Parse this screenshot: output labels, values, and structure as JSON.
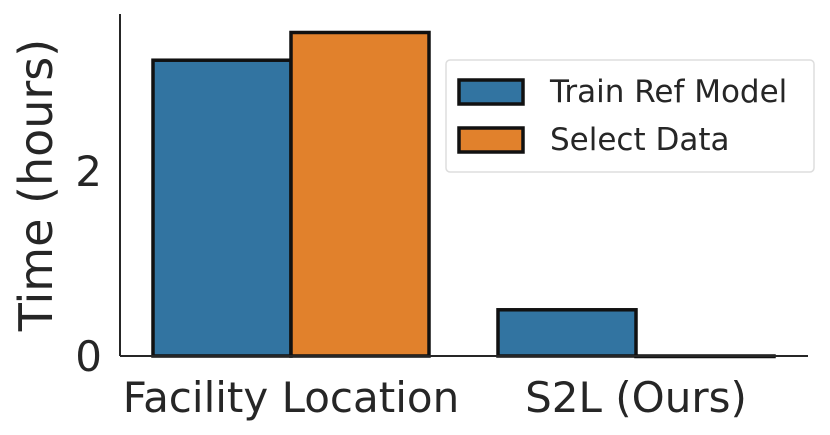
{
  "chart_data": {
    "type": "bar",
    "categories": [
      "Facility Location",
      "S2L (Ours)"
    ],
    "series": [
      {
        "name": "Train Ref Model",
        "color": "#3274a1",
        "values": [
          3.2,
          0.5
        ]
      },
      {
        "name": "Select Data",
        "color": "#e1812c",
        "values": [
          3.5,
          0.0
        ]
      }
    ],
    "ylabel": "Time (hours)",
    "xlabel": "",
    "ylim": [
      0,
      3.7
    ],
    "yticks": [
      0,
      2
    ],
    "grid": false,
    "legend_position": "upper-right"
  }
}
